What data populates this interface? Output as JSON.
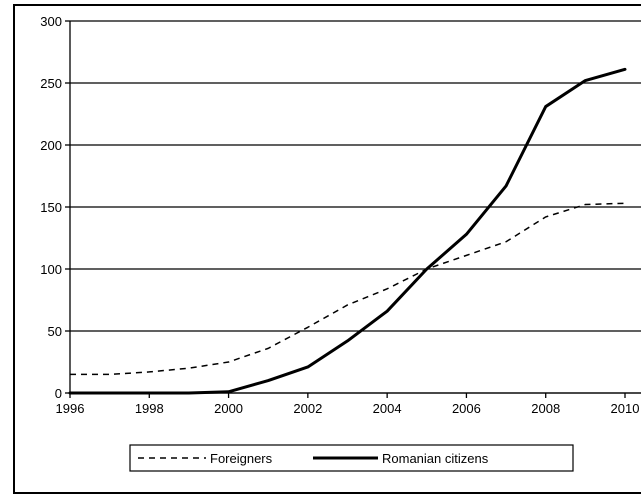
{
  "chart_data": {
    "type": "line",
    "x": [
      1996,
      1997,
      1998,
      1999,
      2000,
      2001,
      2002,
      2003,
      2004,
      2005,
      2006,
      2007,
      2008,
      2009,
      2010
    ],
    "series": [
      {
        "name": "Foreigners",
        "style": "dashed",
        "color": "#000000",
        "values": [
          15,
          15,
          17,
          20,
          25,
          36,
          53,
          71,
          84,
          100,
          111,
          122,
          142,
          152,
          153
        ]
      },
      {
        "name": "Romanian citizens",
        "style": "solid",
        "color": "#000000",
        "values": [
          0,
          0,
          0,
          0,
          1,
          10,
          21,
          42,
          66,
          100,
          128,
          167,
          231,
          252,
          261
        ]
      }
    ],
    "xlim": [
      1996,
      2010
    ],
    "ylim": [
      0,
      300
    ],
    "x_ticks": [
      "1996",
      "1998",
      "2000",
      "2002",
      "2004",
      "2006",
      "2008",
      "2010"
    ],
    "y_ticks": [
      "0",
      "50",
      "100",
      "150",
      "200",
      "250",
      "300"
    ],
    "grid": "horizontal",
    "legend_position": "bottom"
  }
}
